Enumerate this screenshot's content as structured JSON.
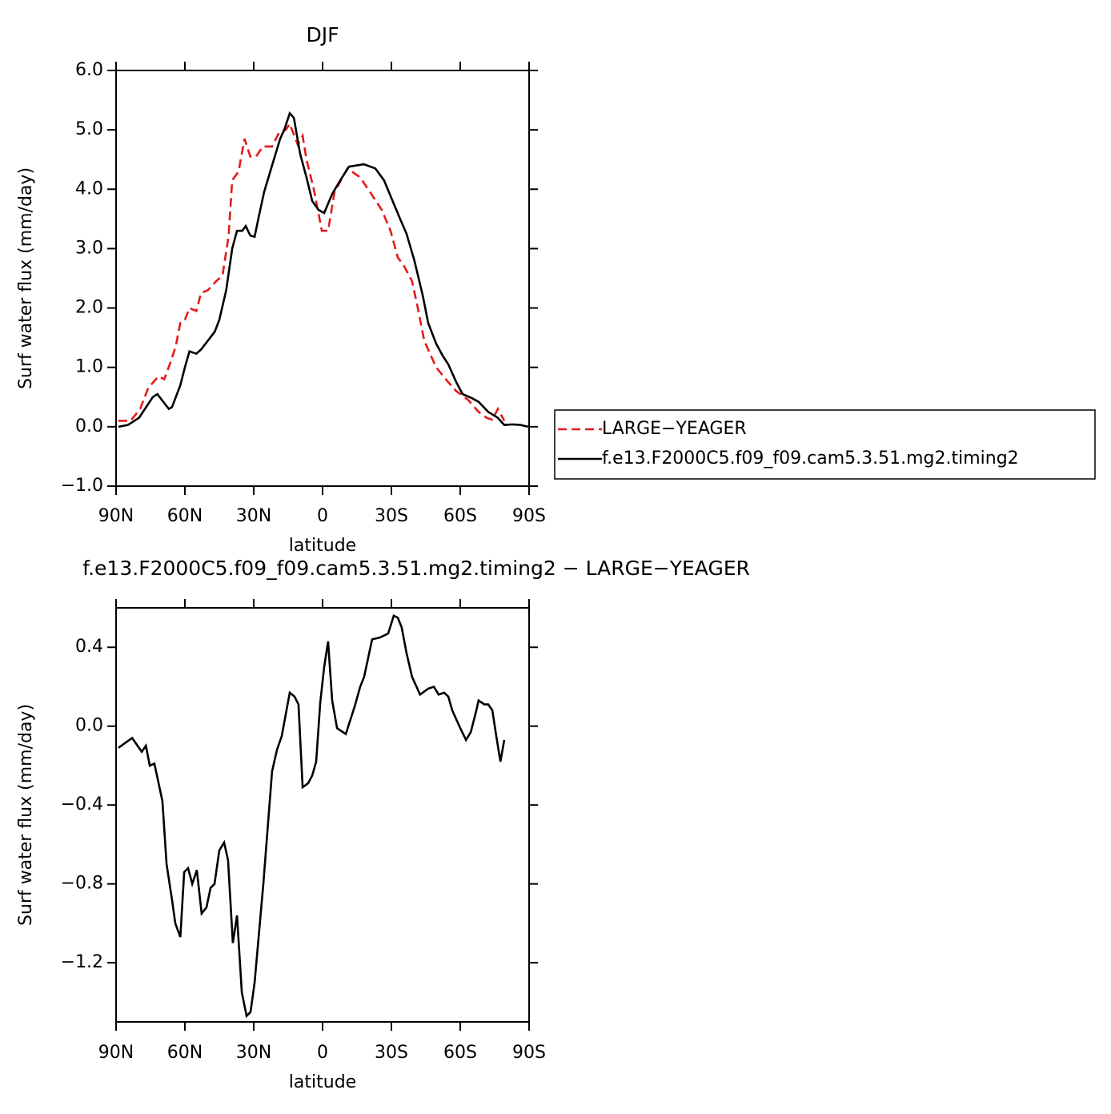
{
  "chart_data": [
    {
      "type": "line",
      "title": "DJF",
      "xlabel": "latitude",
      "ylabel": "Surf water flux (mm/day)",
      "xlim": [
        90,
        -90
      ],
      "xticks": [
        {
          "value": 90,
          "label": "90N"
        },
        {
          "value": 60,
          "label": "60N"
        },
        {
          "value": 30,
          "label": "30N"
        },
        0,
        {
          "value": -30,
          "label": "30S"
        },
        {
          "value": -60,
          "label": "60S"
        },
        {
          "value": -90,
          "label": "90S"
        }
      ],
      "ylim": [
        -1,
        6
      ],
      "yticks": [
        {
          "value": -1,
          "label": "−1.0"
        },
        {
          "value": 0,
          "label": "0.0"
        },
        {
          "value": 1,
          "label": "1.0"
        },
        {
          "value": 2,
          "label": "2.0"
        },
        {
          "value": 3,
          "label": "3.0"
        },
        {
          "value": 4,
          "label": "4.0"
        },
        {
          "value": 5,
          "label": "5.0"
        },
        {
          "value": 6,
          "label": "6.0"
        }
      ],
      "legend": "outside right",
      "series": [
        {
          "name": "LARGE−YEAGER",
          "color": "#e41a1c",
          "dash": "dashed",
          "x": [
            89,
            83.7,
            79.5,
            76,
            71.5,
            69,
            66.6,
            64,
            62,
            60,
            58,
            55,
            53,
            50,
            46.4,
            43.6,
            41,
            39.4,
            36.6,
            34,
            31.5,
            29,
            26,
            22,
            19,
            16,
            14.3,
            10.8,
            8.7,
            7,
            3.8,
            0.3,
            -2.4,
            -5.2,
            -10.8,
            -16.4,
            -21.6,
            -25.8,
            -29.6,
            -32.8,
            -35.6,
            -39,
            -41.5,
            -44.3,
            -49.5,
            -54.8,
            -58.3,
            -63.5,
            -68,
            -71.5,
            -74,
            -76.4,
            -79.2
          ],
          "values": [
            0.1,
            0.1,
            0.3,
            0.65,
            0.85,
            0.8,
            1.05,
            1.35,
            1.75,
            1.8,
            2.0,
            1.95,
            2.25,
            2.3,
            2.45,
            2.55,
            3.2,
            4.15,
            4.3,
            4.85,
            4.55,
            4.55,
            4.72,
            4.72,
            4.95,
            5.0,
            5.1,
            4.75,
            4.9,
            4.5,
            4.0,
            3.3,
            3.3,
            3.95,
            4.35,
            4.2,
            3.9,
            3.65,
            3.3,
            2.85,
            2.7,
            2.45,
            2.0,
            1.45,
            1.0,
            0.75,
            0.6,
            0.45,
            0.25,
            0.15,
            0.12,
            0.3,
            0.1
          ]
        },
        {
          "name": "f.e13.F2000C5.f09_f09.cam5.3.51.mg2.timing2",
          "color": "#000000",
          "dash": "solid",
          "x": [
            89,
            84.8,
            80,
            74,
            72,
            67,
            65.6,
            62,
            60,
            58,
            55,
            53,
            50,
            47,
            45,
            42,
            39.4,
            37.3,
            35,
            33.5,
            31.5,
            29.6,
            28,
            25.5,
            22,
            18.5,
            16.7,
            14.3,
            12.5,
            9.8,
            7,
            4.5,
            1.7,
            -0.7,
            -4.2,
            -7.7,
            -11.5,
            -18,
            -23,
            -26.8,
            -30,
            -33.8,
            -36.6,
            -40,
            -43.7,
            -46,
            -49.5,
            -52.3,
            -54.8,
            -58.3,
            -61,
            -65.2,
            -68,
            -72.2,
            -76.4,
            -79.2,
            -82.7,
            -86.2,
            -89.6
          ],
          "values": [
            0.0,
            0.03,
            0.15,
            0.5,
            0.55,
            0.3,
            0.33,
            0.7,
            1.0,
            1.27,
            1.23,
            1.3,
            1.45,
            1.6,
            1.8,
            2.3,
            3.0,
            3.3,
            3.3,
            3.38,
            3.22,
            3.2,
            3.5,
            3.95,
            4.4,
            4.85,
            5.0,
            5.28,
            5.2,
            4.6,
            4.2,
            3.8,
            3.65,
            3.6,
            3.92,
            4.15,
            4.38,
            4.42,
            4.35,
            4.15,
            3.85,
            3.5,
            3.25,
            2.8,
            2.2,
            1.75,
            1.4,
            1.2,
            1.05,
            0.75,
            0.55,
            0.48,
            0.42,
            0.25,
            0.15,
            0.03,
            0.04,
            0.03,
            0.0
          ]
        }
      ]
    },
    {
      "type": "line",
      "title": "f.e13.F2000C5.f09_f09.cam5.3.51.mg2.timing2 − LARGE−YEAGER",
      "xlabel": "latitude",
      "ylabel": "Surf water flux (mm/day)",
      "xlim": [
        90,
        -90
      ],
      "xticks": [
        {
          "value": 90,
          "label": "90N"
        },
        {
          "value": 60,
          "label": "60N"
        },
        {
          "value": 30,
          "label": "30N"
        },
        0,
        {
          "value": -30,
          "label": "30S"
        },
        {
          "value": -60,
          "label": "60S"
        },
        {
          "value": -90,
          "label": "90S"
        }
      ],
      "ylim": [
        -1.5,
        0.6
      ],
      "yticks": [
        {
          "value": -1.2,
          "label": "−1.2"
        },
        {
          "value": -0.8,
          "label": "−0.8"
        },
        {
          "value": -0.4,
          "label": "−0.4"
        },
        {
          "value": 0,
          "label": "0.0"
        },
        0.4
      ],
      "series": [
        {
          "color": "#000000",
          "dash": "solid",
          "x": [
            89,
            83,
            78.8,
            77,
            75.3,
            73.3,
            69.8,
            68,
            65.6,
            64.2,
            62,
            60.3,
            58.6,
            56.8,
            54.8,
            52.7,
            50.6,
            48.8,
            47.1,
            45,
            42.9,
            41.2,
            39.1,
            37.3,
            35.2,
            33.1,
            31.4,
            29.6,
            25.8,
            22,
            19.9,
            17.8,
            14.3,
            12.2,
            10.5,
            8.7,
            6.3,
            4.5,
            2.8,
            1,
            -0.7,
            -2.4,
            -4.2,
            -6.3,
            -10.1,
            -14,
            -16.4,
            -18.1,
            -21.6,
            -25.1,
            -28.6,
            -31,
            -32.8,
            -34.5,
            -36.6,
            -39,
            -42.5,
            -46,
            -48.5,
            -50.6,
            -53,
            -54.8,
            -56.5,
            -60,
            -62.5,
            -64.6,
            -67,
            -68,
            -70.5,
            -72.2,
            -74,
            -75.7,
            -77.5,
            -79.2
          ],
          "values": [
            -0.11,
            -0.06,
            -0.13,
            -0.1,
            -0.2,
            -0.19,
            -0.38,
            -0.7,
            -0.88,
            -1.0,
            -1.07,
            -0.74,
            -0.72,
            -0.8,
            -0.73,
            -0.95,
            -0.92,
            -0.82,
            -0.8,
            -0.63,
            -0.59,
            -0.68,
            -1.1,
            -0.96,
            -1.35,
            -1.47,
            -1.45,
            -1.3,
            -0.8,
            -0.23,
            -0.12,
            -0.05,
            0.17,
            0.15,
            0.11,
            -0.31,
            -0.29,
            -0.25,
            -0.18,
            0.12,
            0.3,
            0.43,
            0.13,
            -0.01,
            -0.04,
            0.1,
            0.2,
            0.25,
            0.44,
            0.45,
            0.47,
            0.56,
            0.55,
            0.5,
            0.37,
            0.25,
            0.16,
            0.19,
            0.2,
            0.16,
            0.17,
            0.15,
            0.08,
            -0.01,
            -0.07,
            -0.03,
            0.08,
            0.13,
            0.11,
            0.11,
            0.08,
            -0.05,
            -0.18,
            -0.07
          ]
        }
      ]
    }
  ]
}
